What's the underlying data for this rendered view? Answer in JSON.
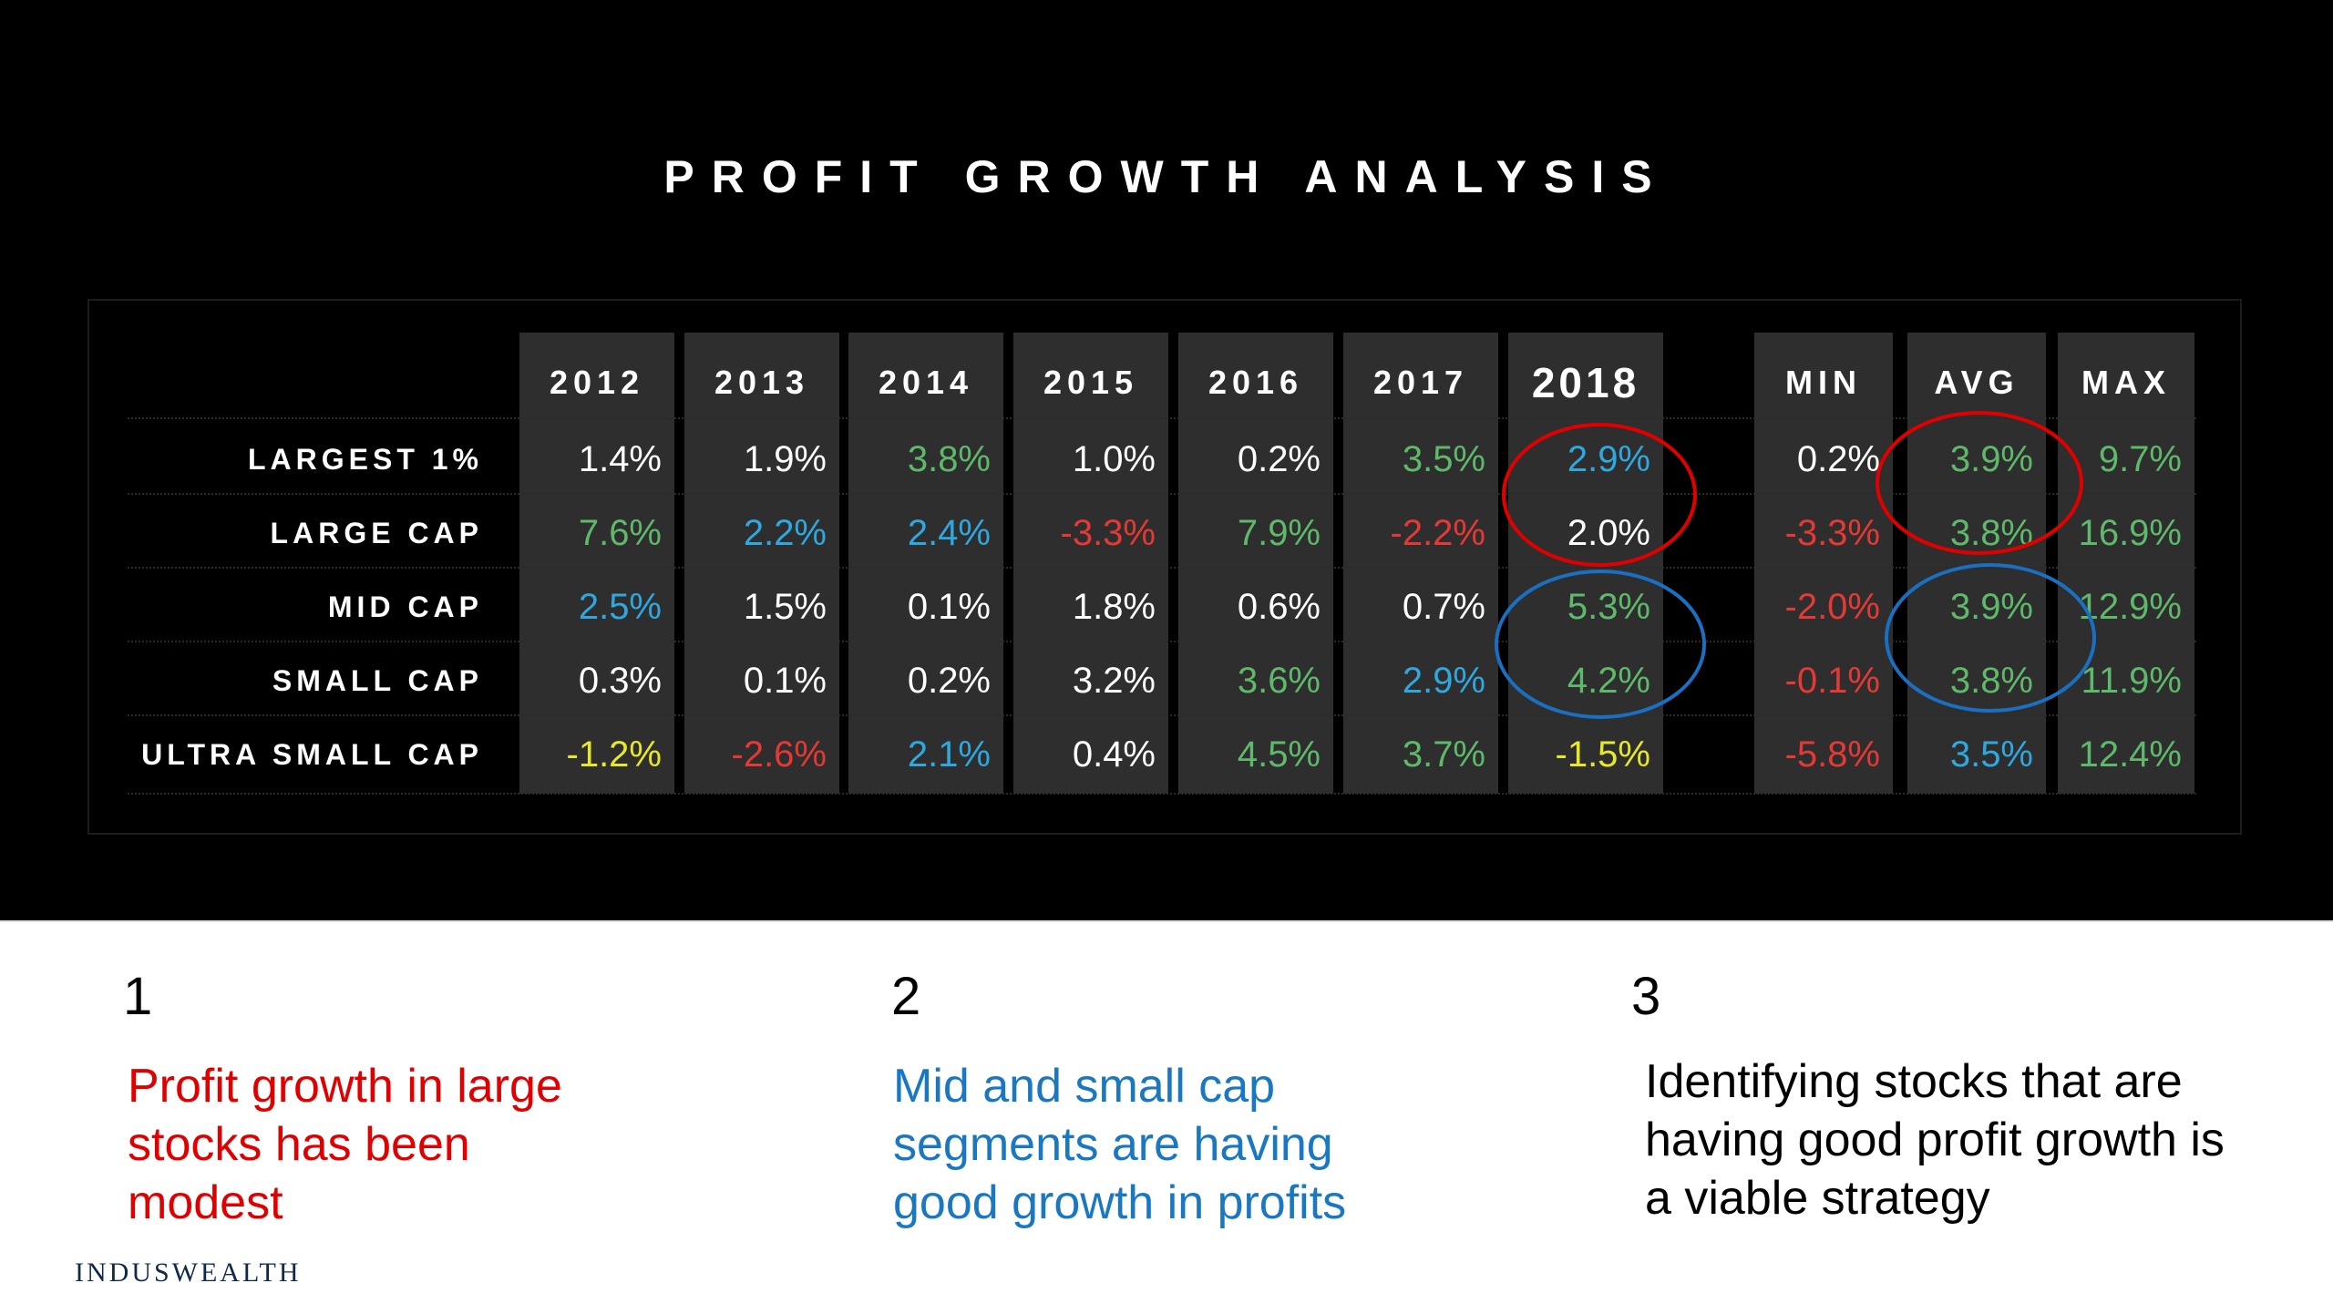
{
  "title": "PROFIT GROWTH ANALYSIS",
  "colors": {
    "white": "#ffffff",
    "green": "#5fb96b",
    "blue": "#2fa8e0",
    "red": "#e53935",
    "yellow": "#e8e82a",
    "oval_red": "#e00000",
    "oval_blue": "#1a6fc0",
    "panel": "#2e2e2e"
  },
  "chart_data": {
    "type": "table",
    "columns": [
      "2012",
      "2013",
      "2014",
      "2015",
      "2016",
      "2017",
      "2018",
      "MIN",
      "AVG",
      "MAX"
    ],
    "rows": [
      {
        "label": "LARGEST 1%",
        "values": [
          "1.4%",
          "1.9%",
          "3.8%",
          "1.0%",
          "0.2%",
          "3.5%",
          "2.9%",
          "0.2%",
          "3.9%",
          "9.7%"
        ],
        "colors": [
          "white",
          "white",
          "green",
          "white",
          "white",
          "green",
          "blue",
          "white",
          "green",
          "green"
        ]
      },
      {
        "label": "LARGE CAP",
        "values": [
          "7.6%",
          "2.2%",
          "2.4%",
          "-3.3%",
          "7.9%",
          "-2.2%",
          "2.0%",
          "-3.3%",
          "3.8%",
          "16.9%"
        ],
        "colors": [
          "green",
          "blue",
          "blue",
          "red",
          "green",
          "red",
          "white",
          "red",
          "green",
          "green"
        ]
      },
      {
        "label": "MID CAP",
        "values": [
          "2.5%",
          "1.5%",
          "0.1%",
          "1.8%",
          "0.6%",
          "0.7%",
          "5.3%",
          "-2.0%",
          "3.9%",
          "12.9%"
        ],
        "colors": [
          "blue",
          "white",
          "white",
          "white",
          "white",
          "white",
          "green",
          "red",
          "green",
          "green"
        ]
      },
      {
        "label": "SMALL CAP",
        "values": [
          "0.3%",
          "0.1%",
          "0.2%",
          "3.2%",
          "3.6%",
          "2.9%",
          "4.2%",
          "-0.1%",
          "3.8%",
          "11.9%"
        ],
        "colors": [
          "white",
          "white",
          "white",
          "white",
          "green",
          "blue",
          "green",
          "red",
          "green",
          "green"
        ]
      },
      {
        "label": "ULTRA SMALL CAP",
        "values": [
          "-1.2%",
          "-2.6%",
          "2.1%",
          "0.4%",
          "4.5%",
          "3.7%",
          "-1.5%",
          "-5.8%",
          "3.5%",
          "12.4%"
        ],
        "colors": [
          "yellow",
          "red",
          "blue",
          "white",
          "green",
          "green",
          "yellow",
          "red",
          "blue",
          "green"
        ]
      }
    ]
  },
  "notes": [
    {
      "number": "1",
      "text": "Profit growth in large stocks has been modest",
      "color": "#e00000"
    },
    {
      "number": "2",
      "text": "Mid and small cap segments are having good growth in profits",
      "color": "#1a78c2"
    },
    {
      "number": "3",
      "text": "Identifying stocks that are having good profit growth is a viable strategy",
      "color": "#000000"
    }
  ],
  "logo_text": "INDUSWEALTH"
}
